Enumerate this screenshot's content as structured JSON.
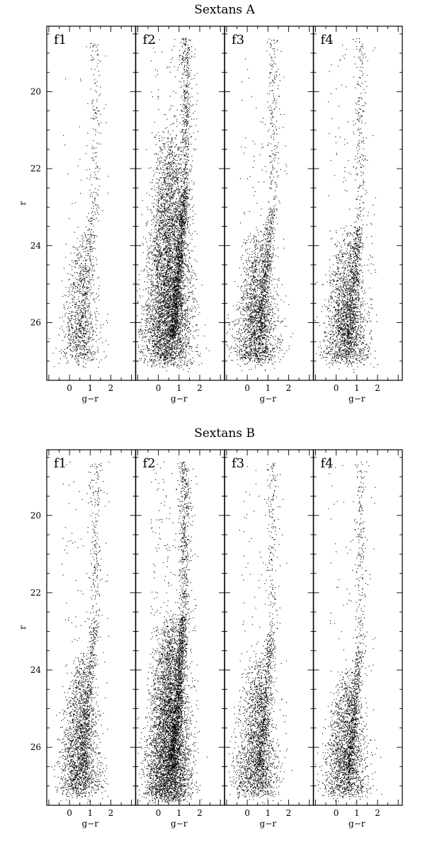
{
  "chart_data": [
    {
      "type": "scatter",
      "title": "Sextans A",
      "xlabel": "g−r",
      "ylabel": "r",
      "xlim": [
        -1.1,
        3.2
      ],
      "ylim": [
        27.5,
        18.3
      ],
      "y_inverted": true,
      "xticks": [
        0,
        1,
        2
      ],
      "yticks": [
        20,
        22,
        24,
        26
      ],
      "grid": false,
      "legend": "none",
      "panels": [
        {
          "label": "f1",
          "density": "low",
          "main_sequence": {
            "gr_range": [
              -0.2,
              1.1
            ],
            "r_range": [
              23.5,
              27.0
            ]
          },
          "red_giant_branch": {
            "tip_r": 22.6,
            "gr_at_tip": 1.2,
            "gr_at_base": 0.6
          }
        },
        {
          "label": "f2",
          "density": "very high",
          "main_sequence": {
            "gr_range": [
              -0.5,
              1.3
            ],
            "r_range": [
              21.0,
              27.0
            ]
          },
          "red_giant_branch": {
            "tip_r": 22.6,
            "gr_at_tip": 1.25,
            "gr_at_base": 0.7
          }
        },
        {
          "label": "f3",
          "density": "medium",
          "main_sequence": {
            "gr_range": [
              -0.4,
              1.2
            ],
            "r_range": [
              23.5,
              27.0
            ]
          },
          "red_giant_branch": {
            "tip_r": 23.0,
            "gr_at_tip": 1.2,
            "gr_at_base": 0.6
          }
        },
        {
          "label": "f4",
          "density": "medium",
          "main_sequence": {
            "gr_range": [
              -0.4,
              1.2
            ],
            "r_range": [
              23.5,
              27.0
            ]
          },
          "red_giant_branch": {
            "tip_r": 23.5,
            "gr_at_tip": 1.1,
            "gr_at_base": 0.6
          }
        }
      ]
    },
    {
      "type": "scatter",
      "title": "Sextans B",
      "xlabel": "g−r",
      "ylabel": "r",
      "xlim": [
        -1.1,
        3.2
      ],
      "ylim": [
        27.5,
        18.3
      ],
      "y_inverted": true,
      "xticks": [
        0,
        1,
        2
      ],
      "yticks": [
        20,
        22,
        24,
        26
      ],
      "grid": false,
      "legend": "none",
      "panels": [
        {
          "label": "f1",
          "density": "medium",
          "main_sequence": {
            "gr_range": [
              -0.3,
              1.2
            ],
            "r_range": [
              23.5,
              27.2
            ]
          },
          "red_giant_branch": {
            "tip_r": 22.7,
            "gr_at_tip": 1.2,
            "gr_at_base": 0.6
          }
        },
        {
          "label": "f2",
          "density": "very high",
          "main_sequence": {
            "gr_range": [
              -0.4,
              1.3
            ],
            "r_range": [
              22.5,
              27.3
            ]
          },
          "red_giant_branch": {
            "tip_r": 22.6,
            "gr_at_tip": 1.2,
            "gr_at_base": 0.7
          }
        },
        {
          "label": "f3",
          "density": "medium",
          "main_sequence": {
            "gr_range": [
              -0.4,
              1.2
            ],
            "r_range": [
              23.5,
              27.2
            ]
          },
          "red_giant_branch": {
            "tip_r": 23.0,
            "gr_at_tip": 1.15,
            "gr_at_base": 0.6
          }
        },
        {
          "label": "f4",
          "density": "medium",
          "main_sequence": {
            "gr_range": [
              -0.4,
              1.2
            ],
            "r_range": [
              24.0,
              27.2
            ]
          },
          "red_giant_branch": {
            "tip_r": 23.5,
            "gr_at_tip": 1.1,
            "gr_at_base": 0.6
          }
        }
      ]
    }
  ]
}
